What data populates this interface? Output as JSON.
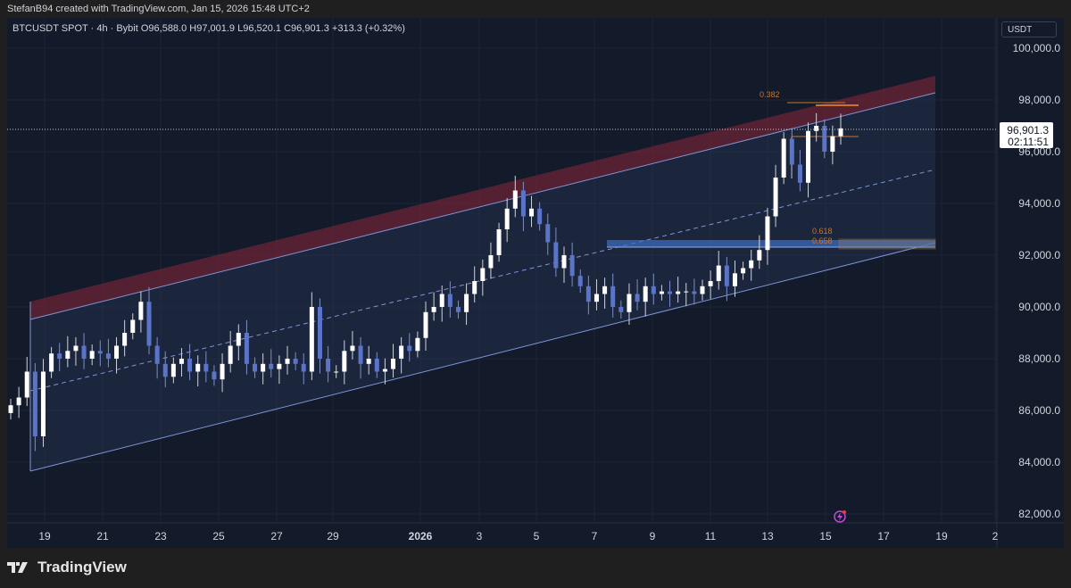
{
  "credit": "StefanB94 created with TradingView.com, Jan 15, 2026 15:48 UTC+2",
  "legend": "BTCUSDT SPOT · 4h · Bybit  O96,588.0  H97,001.9  L96,520.1  C96,901.3  +313.3 (+0.32%)",
  "unit": "USDT",
  "footer_brand": "TradingView",
  "colors": {
    "background": "#131a29",
    "bull": "#ffffff",
    "bear": "#5b74c8",
    "channel": "#7f95d8",
    "band_red": "#6b2436",
    "fib": "#c8752a"
  },
  "chart_data": {
    "type": "candlestick",
    "symbol": "BTCUSDT SPOT",
    "interval": "4h",
    "exchange": "Bybit",
    "ylim": [
      81500,
      100800
    ],
    "y_ticks": [
      "100,000.0",
      "98,000.0",
      "96,000.0",
      "94,000.0",
      "92,000.0",
      "90,000.0",
      "88,000.0",
      "86,000.0",
      "84,000.0",
      "82,000.0"
    ],
    "y_tick_values": [
      100000,
      98000,
      96000,
      94000,
      92000,
      90000,
      88000,
      86000,
      84000,
      82000
    ],
    "x_ticks": [
      "19",
      "21",
      "23",
      "25",
      "27",
      "29",
      "2026",
      "3",
      "5",
      "7",
      "9",
      "11",
      "13",
      "15",
      "17",
      "19",
      "2"
    ],
    "last_price": "96,901.3",
    "countdown": "02:11:51",
    "closes": [
      86200,
      86500,
      87500,
      85000,
      87500,
      88200,
      88000,
      88300,
      88500,
      88000,
      88300,
      88200,
      88000,
      88500,
      89000,
      89500,
      90200,
      88500,
      87800,
      87300,
      87800,
      88000,
      87500,
      87800,
      87500,
      87200,
      87800,
      88500,
      89000,
      87800,
      87500,
      87800,
      87600,
      87800,
      88000,
      87800,
      87500,
      90000,
      88000,
      87500,
      87500,
      88300,
      88500,
      87800,
      88000,
      87500,
      87600,
      88000,
      88500,
      88300,
      88800,
      89800,
      90000,
      90500,
      90000,
      89800,
      90500,
      91000,
      91500,
      92000,
      93000,
      93800,
      94500,
      93500,
      93800,
      93200,
      92500,
      91500,
      92000,
      91200,
      90800,
      90200,
      90500,
      90800,
      90000,
      89800,
      90500,
      90200,
      90800,
      90500,
      90600,
      90500,
      90600,
      90600,
      90500,
      90800,
      91000,
      91600,
      90800,
      91300,
      91500,
      91800,
      92200,
      93500,
      95000,
      96500,
      95500,
      94800,
      96800,
      97000,
      96000,
      96600,
      96901.3
    ],
    "fib_labels": [
      "0.382",
      "0.618",
      "0.658"
    ]
  }
}
